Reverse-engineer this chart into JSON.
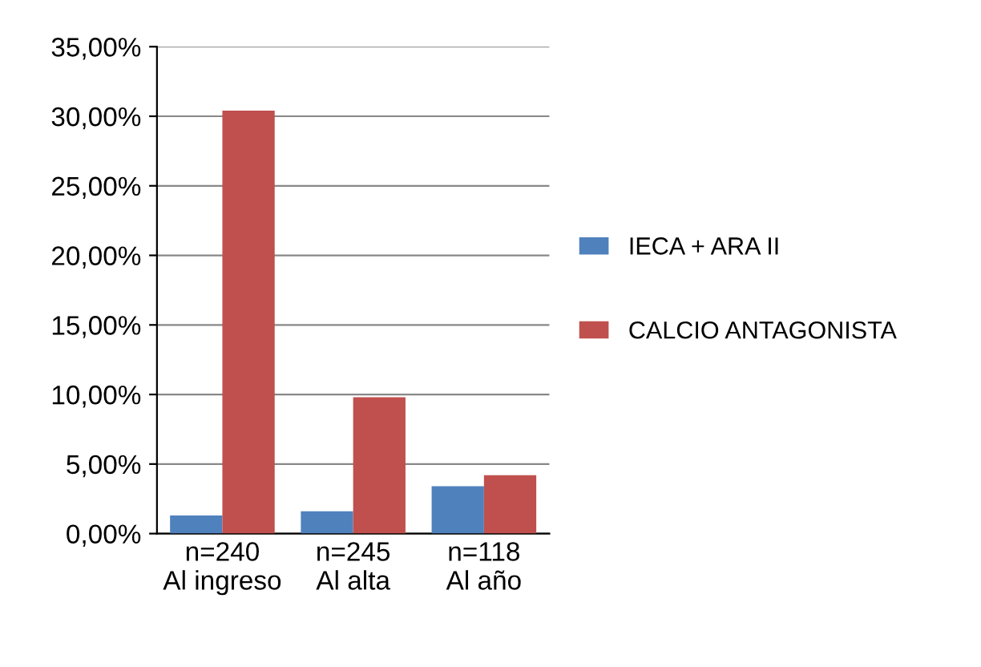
{
  "chart_data": {
    "type": "bar",
    "categories": [
      "n=240\nAl ingreso",
      "n=245\nAl alta",
      "n=118\nAl año"
    ],
    "series": [
      {
        "name": "IECA + ARA II",
        "color": "#4f81bd",
        "values": [
          1.3,
          1.6,
          3.4
        ]
      },
      {
        "name": "CALCIO ANTAGONISTA",
        "color": "#c0504d",
        "values": [
          30.4,
          9.8,
          4.2
        ]
      }
    ],
    "ylim": [
      0,
      35
    ],
    "yticks": [
      {
        "value": 0,
        "label": "0,00%"
      },
      {
        "value": 5,
        "label": "5,00%"
      },
      {
        "value": 10,
        "label": "10,00%"
      },
      {
        "value": 15,
        "label": "15,00%"
      },
      {
        "value": 20,
        "label": "20,00%"
      },
      {
        "value": 25,
        "label": "25,00%"
      },
      {
        "value": 30,
        "label": "30,00%"
      },
      {
        "value": 35,
        "label": "35,00%"
      }
    ],
    "grid": "y",
    "legend": "right"
  }
}
